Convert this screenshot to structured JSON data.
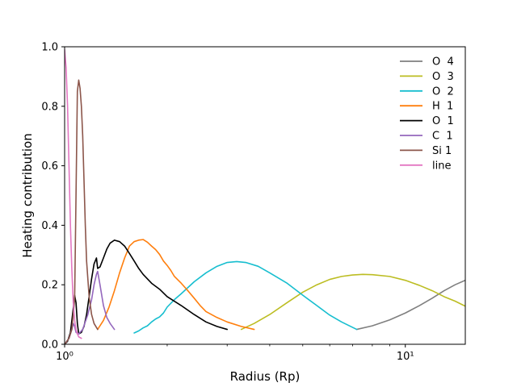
{
  "chart_data": {
    "type": "line",
    "title": "",
    "xlabel": "Radius (Rp)",
    "ylabel": "Heating contribution",
    "xscale": "log",
    "xlim": [
      1.0,
      15.0
    ],
    "ylim": [
      0.0,
      1.0
    ],
    "x_ticks": [
      {
        "value": 1,
        "label": "10⁰"
      },
      {
        "value": 10,
        "label": "10¹"
      }
    ],
    "y_ticks": [
      {
        "value": 0.0,
        "label": "0.0"
      },
      {
        "value": 0.2,
        "label": "0.2"
      },
      {
        "value": 0.4,
        "label": "0.4"
      },
      {
        "value": 0.6,
        "label": "0.6"
      },
      {
        "value": 0.8,
        "label": "0.8"
      },
      {
        "value": 1.0,
        "label": "1.0"
      }
    ],
    "legend_position": "top-right",
    "grid": false,
    "series": [
      {
        "name": "O  4",
        "color": "#7f7f7f",
        "points": [
          [
            7.2,
            0.05
          ],
          [
            8,
            0.062
          ],
          [
            9,
            0.082
          ],
          [
            10,
            0.105
          ],
          [
            11,
            0.13
          ],
          [
            12,
            0.155
          ],
          [
            13,
            0.18
          ],
          [
            14,
            0.2
          ],
          [
            15,
            0.215
          ]
        ]
      },
      {
        "name": "O  3",
        "color": "#bcbd22",
        "points": [
          [
            3.3,
            0.05
          ],
          [
            3.6,
            0.07
          ],
          [
            4,
            0.1
          ],
          [
            4.5,
            0.14
          ],
          [
            5,
            0.175
          ],
          [
            5.5,
            0.2
          ],
          [
            6,
            0.218
          ],
          [
            6.5,
            0.228
          ],
          [
            7,
            0.233
          ],
          [
            7.5,
            0.235
          ],
          [
            8,
            0.234
          ],
          [
            9,
            0.228
          ],
          [
            10,
            0.215
          ],
          [
            11,
            0.198
          ],
          [
            12,
            0.18
          ],
          [
            13,
            0.16
          ],
          [
            14,
            0.145
          ],
          [
            15,
            0.128
          ]
        ]
      },
      {
        "name": "O  2",
        "color": "#17becf",
        "points": [
          [
            1.6,
            0.038
          ],
          [
            1.65,
            0.045
          ],
          [
            1.7,
            0.055
          ],
          [
            1.75,
            0.062
          ],
          [
            1.8,
            0.075
          ],
          [
            1.85,
            0.085
          ],
          [
            1.9,
            0.092
          ],
          [
            1.95,
            0.105
          ],
          [
            2.0,
            0.125
          ],
          [
            2.1,
            0.15
          ],
          [
            2.2,
            0.17
          ],
          [
            2.4,
            0.21
          ],
          [
            2.6,
            0.24
          ],
          [
            2.8,
            0.262
          ],
          [
            3.0,
            0.275
          ],
          [
            3.2,
            0.278
          ],
          [
            3.4,
            0.275
          ],
          [
            3.7,
            0.262
          ],
          [
            4,
            0.24
          ],
          [
            4.5,
            0.205
          ],
          [
            5,
            0.165
          ],
          [
            5.5,
            0.13
          ],
          [
            6,
            0.098
          ],
          [
            6.5,
            0.075
          ],
          [
            7.2,
            0.05
          ]
        ]
      },
      {
        "name": "H  1",
        "color": "#ff7f0e",
        "points": [
          [
            1.25,
            0.05
          ],
          [
            1.3,
            0.08
          ],
          [
            1.35,
            0.125
          ],
          [
            1.4,
            0.18
          ],
          [
            1.45,
            0.24
          ],
          [
            1.5,
            0.29
          ],
          [
            1.55,
            0.33
          ],
          [
            1.6,
            0.345
          ],
          [
            1.65,
            0.35
          ],
          [
            1.7,
            0.352
          ],
          [
            1.75,
            0.343
          ],
          [
            1.8,
            0.33
          ],
          [
            1.85,
            0.318
          ],
          [
            1.9,
            0.302
          ],
          [
            1.95,
            0.28
          ],
          [
            2.0,
            0.265
          ],
          [
            2.05,
            0.248
          ],
          [
            2.1,
            0.228
          ],
          [
            2.2,
            0.205
          ],
          [
            2.3,
            0.18
          ],
          [
            2.4,
            0.155
          ],
          [
            2.5,
            0.13
          ],
          [
            2.6,
            0.11
          ],
          [
            2.8,
            0.09
          ],
          [
            3.0,
            0.075
          ],
          [
            3.3,
            0.06
          ],
          [
            3.6,
            0.05
          ]
        ]
      },
      {
        "name": "O  1",
        "color": "#000000",
        "points": [
          [
            1.0,
            0.0
          ],
          [
            1.02,
            0.01
          ],
          [
            1.04,
            0.04
          ],
          [
            1.06,
            0.12
          ],
          [
            1.07,
            0.165
          ],
          [
            1.08,
            0.14
          ],
          [
            1.09,
            0.07
          ],
          [
            1.1,
            0.035
          ],
          [
            1.12,
            0.04
          ],
          [
            1.14,
            0.06
          ],
          [
            1.16,
            0.1
          ],
          [
            1.18,
            0.16
          ],
          [
            1.2,
            0.22
          ],
          [
            1.22,
            0.27
          ],
          [
            1.23,
            0.28
          ],
          [
            1.24,
            0.29
          ],
          [
            1.25,
            0.255
          ],
          [
            1.27,
            0.26
          ],
          [
            1.3,
            0.29
          ],
          [
            1.33,
            0.32
          ],
          [
            1.36,
            0.34
          ],
          [
            1.4,
            0.35
          ],
          [
            1.45,
            0.345
          ],
          [
            1.5,
            0.33
          ],
          [
            1.55,
            0.305
          ],
          [
            1.6,
            0.28
          ],
          [
            1.65,
            0.255
          ],
          [
            1.7,
            0.235
          ],
          [
            1.8,
            0.205
          ],
          [
            1.9,
            0.185
          ],
          [
            2.0,
            0.16
          ],
          [
            2.2,
            0.13
          ],
          [
            2.4,
            0.1
          ],
          [
            2.6,
            0.075
          ],
          [
            2.8,
            0.06
          ],
          [
            3.0,
            0.05
          ]
        ]
      },
      {
        "name": "C  1",
        "color": "#9467bd",
        "points": [
          [
            1.0,
            0.0
          ],
          [
            1.03,
            0.02
          ],
          [
            1.05,
            0.05
          ],
          [
            1.06,
            0.07
          ],
          [
            1.07,
            0.06
          ],
          [
            1.08,
            0.04
          ],
          [
            1.1,
            0.035
          ],
          [
            1.13,
            0.05
          ],
          [
            1.17,
            0.1
          ],
          [
            1.2,
            0.15
          ],
          [
            1.22,
            0.2
          ],
          [
            1.24,
            0.235
          ],
          [
            1.25,
            0.245
          ],
          [
            1.27,
            0.2
          ],
          [
            1.3,
            0.13
          ],
          [
            1.33,
            0.09
          ],
          [
            1.36,
            0.07
          ],
          [
            1.4,
            0.05
          ]
        ]
      },
      {
        "name": "Si 1",
        "color": "#8c564b",
        "points": [
          [
            1.0,
            0.0
          ],
          [
            1.03,
            0.02
          ],
          [
            1.05,
            0.05
          ],
          [
            1.07,
            0.15
          ],
          [
            1.08,
            0.5
          ],
          [
            1.09,
            0.85
          ],
          [
            1.1,
            0.888
          ],
          [
            1.11,
            0.86
          ],
          [
            1.12,
            0.8
          ],
          [
            1.13,
            0.7
          ],
          [
            1.14,
            0.55
          ],
          [
            1.15,
            0.4
          ],
          [
            1.16,
            0.28
          ],
          [
            1.18,
            0.16
          ],
          [
            1.2,
            0.1
          ],
          [
            1.22,
            0.07
          ],
          [
            1.25,
            0.05
          ]
        ]
      },
      {
        "name": "line",
        "color": "#e377c2",
        "points": [
          [
            1.0,
            0.99
          ],
          [
            1.01,
            0.93
          ],
          [
            1.02,
            0.8
          ],
          [
            1.03,
            0.6
          ],
          [
            1.04,
            0.4
          ],
          [
            1.05,
            0.25
          ],
          [
            1.06,
            0.14
          ],
          [
            1.07,
            0.08
          ],
          [
            1.08,
            0.05
          ],
          [
            1.09,
            0.035
          ],
          [
            1.1,
            0.025
          ],
          [
            1.12,
            0.02
          ]
        ]
      }
    ]
  }
}
